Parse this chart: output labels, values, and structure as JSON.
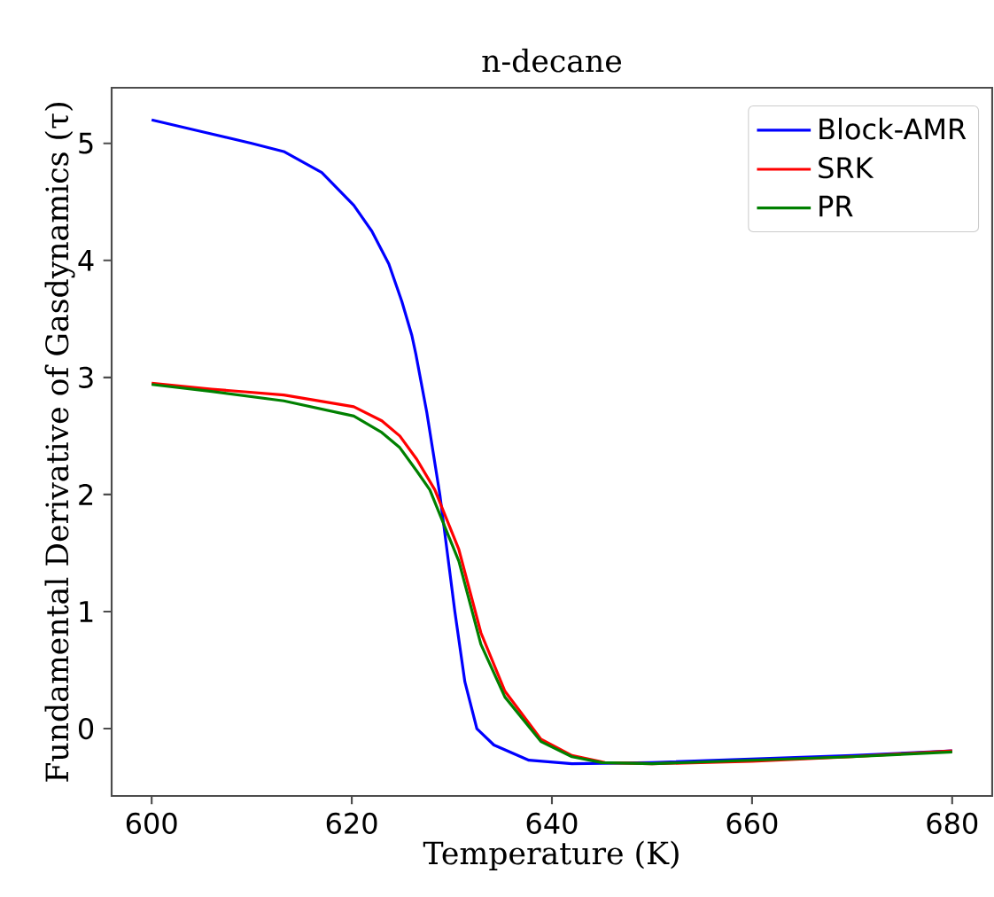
{
  "chart_data": {
    "type": "line",
    "title": "n-decane",
    "xlabel": "Temperature (K)",
    "ylabel": "Fundamental Derivative of Gasdynamics (τ)",
    "xlim": [
      596,
      684
    ],
    "ylim": [
      -0.575,
      5.475
    ],
    "xticks": [
      600,
      620,
      640,
      660,
      680
    ],
    "yticks": [
      0,
      1,
      2,
      3,
      4,
      5
    ],
    "grid": false,
    "legend": "top right",
    "marker": "none",
    "line_style": "solid",
    "series": [
      {
        "name": "Block-AMR",
        "color": "#0000ff",
        "x": [
          600,
          605,
          610,
          613.2,
          617,
          620.2,
          622,
          623.7,
          625,
          626,
          626.4,
          627.5,
          628.8,
          630.3,
          631.3,
          632.5,
          634.2,
          637.7,
          642,
          650,
          660,
          670,
          680
        ],
        "values": [
          5.2,
          5.1,
          5.0,
          4.93,
          4.75,
          4.47,
          4.25,
          3.97,
          3.65,
          3.36,
          3.2,
          2.7,
          2.0,
          1.0,
          0.4,
          0.0,
          -0.14,
          -0.27,
          -0.3,
          -0.29,
          -0.26,
          -0.23,
          -0.19
        ]
      },
      {
        "name": "SRK",
        "color": "#ff0000",
        "x": [
          600,
          606,
          613.2,
          620.2,
          623,
          624.8,
          626.5,
          628.3,
          630.7,
          632.9,
          635.3,
          638.9,
          642,
          645.3,
          650,
          660,
          670,
          680
        ],
        "values": [
          2.95,
          2.9,
          2.85,
          2.75,
          2.63,
          2.5,
          2.3,
          2.04,
          1.53,
          0.82,
          0.32,
          -0.09,
          -0.23,
          -0.29,
          -0.3,
          -0.28,
          -0.24,
          -0.19
        ]
      },
      {
        "name": "PR",
        "color": "#008000",
        "x": [
          600,
          606,
          613.2,
          620.2,
          623,
          624.8,
          626.5,
          627.8,
          630.7,
          632.9,
          635.3,
          638.9,
          642,
          645,
          650,
          660,
          670,
          680
        ],
        "values": [
          2.94,
          2.88,
          2.8,
          2.67,
          2.53,
          2.4,
          2.2,
          2.04,
          1.43,
          0.72,
          0.27,
          -0.11,
          -0.24,
          -0.29,
          -0.3,
          -0.27,
          -0.24,
          -0.2
        ]
      }
    ]
  }
}
